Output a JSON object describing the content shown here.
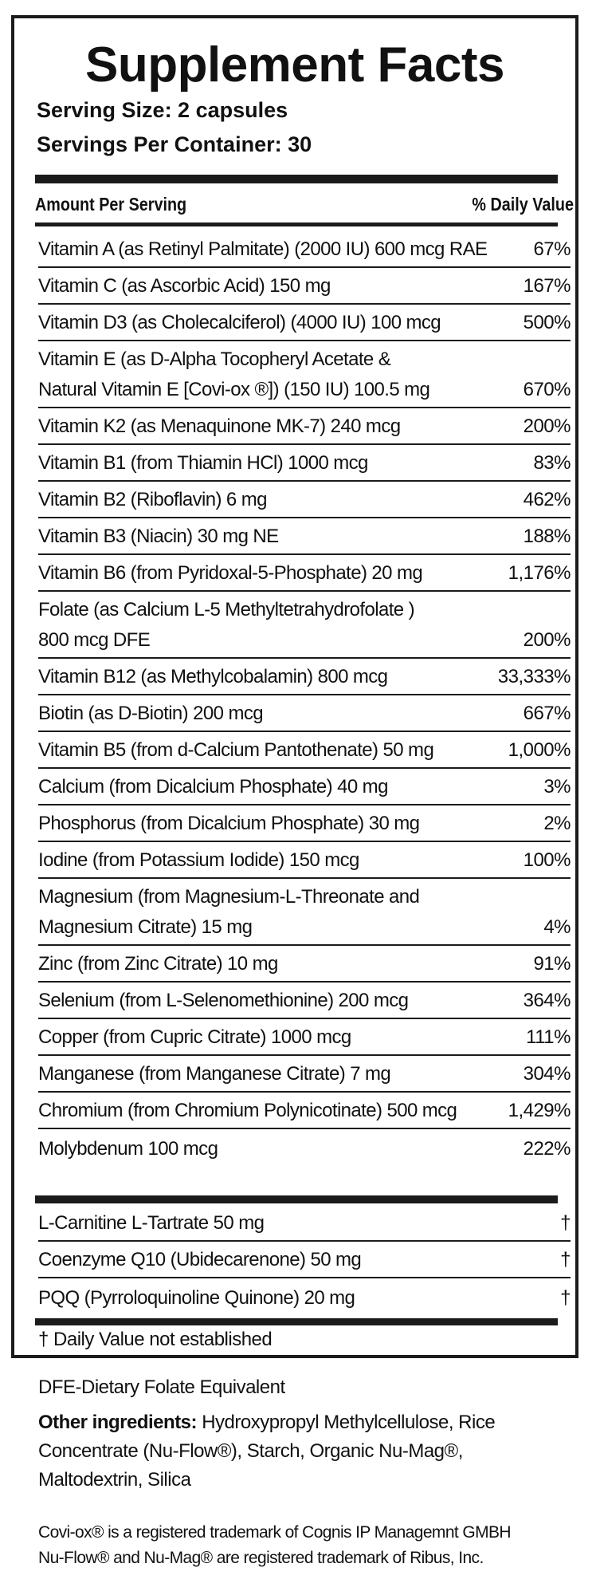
{
  "title": "Supplement Facts",
  "serving_size": "Serving Size: 2 capsules",
  "servings_per_container": "Servings Per Container: 30",
  "header": {
    "amount": "Amount Per Serving",
    "daily_value": "% Daily Value"
  },
  "nutrients": [
    {
      "name": "Vitamin A (as Retinyl Palmitate) (2000 IU) 600 mcg RAE",
      "dv": "67%"
    },
    {
      "name": "Vitamin C (as Ascorbic Acid) 150 mg",
      "dv": "167%"
    },
    {
      "name": "Vitamin D3 (as Cholecalciferol) (4000 IU) 100 mcg",
      "dv": "500%"
    },
    {
      "name": "Vitamin E (as D-Alpha Tocopheryl Acetate &\nNatural Vitamin E [Covi-ox ®]) (150 IU) 100.5 mg",
      "dv": "670%"
    },
    {
      "name": "Vitamin K2 (as Menaquinone MK-7) 240 mcg",
      "dv": "200%"
    },
    {
      "name": "Vitamin B1 (from Thiamin HCl) 1000 mcg",
      "dv": "83%"
    },
    {
      "name": "Vitamin B2 (Riboflavin) 6 mg",
      "dv": "462%"
    },
    {
      "name": "Vitamin B3 (Niacin) 30 mg NE",
      "dv": "188%"
    },
    {
      "name": "Vitamin B6 (from Pyridoxal-5-Phosphate) 20 mg",
      "dv": "1,176%"
    },
    {
      "name": "Folate (as Calcium L-5 Methyltetrahydrofolate )\n800 mcg  DFE",
      "dv": "200%"
    },
    {
      "name": "Vitamin B12 (as Methylcobalamin) 800 mcg",
      "dv": "33,333%"
    },
    {
      "name": "Biotin (as D-Biotin) 200 mcg",
      "dv": "667%"
    },
    {
      "name": "Vitamin B5 (from d-Calcium Pantothenate) 50 mg",
      "dv": "1,000%"
    },
    {
      "name": "Calcium (from Dicalcium Phosphate)  40 mg",
      "dv": "3%"
    },
    {
      "name": "Phosphorus (from Dicalcium Phosphate) 30 mg",
      "dv": "2%"
    },
    {
      "name": "Iodine (from Potassium Iodide) 150 mcg",
      "dv": "100%"
    },
    {
      "name": "Magnesium (from Magnesium-L-Threonate and\nMagnesium Citrate) 15 mg",
      "dv": "4%"
    },
    {
      "name": "Zinc (from Zinc Citrate) 10 mg",
      "dv": "91%"
    },
    {
      "name": "Selenium (from L-Selenomethionine) 200 mcg",
      "dv": "364%"
    },
    {
      "name": "Copper (from Cupric Citrate) 1000 mcg",
      "dv": "111%"
    },
    {
      "name": "Manganese (from Manganese Citrate) 7 mg",
      "dv": "304%"
    },
    {
      "name": "Chromium (from Chromium Polynicotinate) 500 mcg",
      "dv": "1,429%"
    },
    {
      "name": "Molybdenum 100 mcg",
      "dv": "222%"
    }
  ],
  "others": [
    {
      "name": "L-Carnitine L-Tartrate 50 mg",
      "dv": "†"
    },
    {
      "name": "Coenzyme Q10 (Ubidecarenone) 50 mg",
      "dv": "†"
    },
    {
      "name": "PQQ (Pyrroloquinoline Quinone) 20 mg",
      "dv": "†"
    }
  ],
  "footnote": "† Daily Value not established",
  "dfe_note": "DFE-Dietary Folate Equivalent",
  "other_ingredients": {
    "label": "Other ingredients:",
    "text": " Hydroxypropyl Methylcellulose, Rice Concentrate (Nu-Flow®), Starch, Organic Nu-Mag®, Maltodextrin, Silica"
  },
  "trademarks": [
    "Covi-ox® is a registered trademark of Cognis IP Managemnt GMBH",
    "Nu-Flow® and Nu-Mag® are registered trademark of Ribus, Inc."
  ]
}
